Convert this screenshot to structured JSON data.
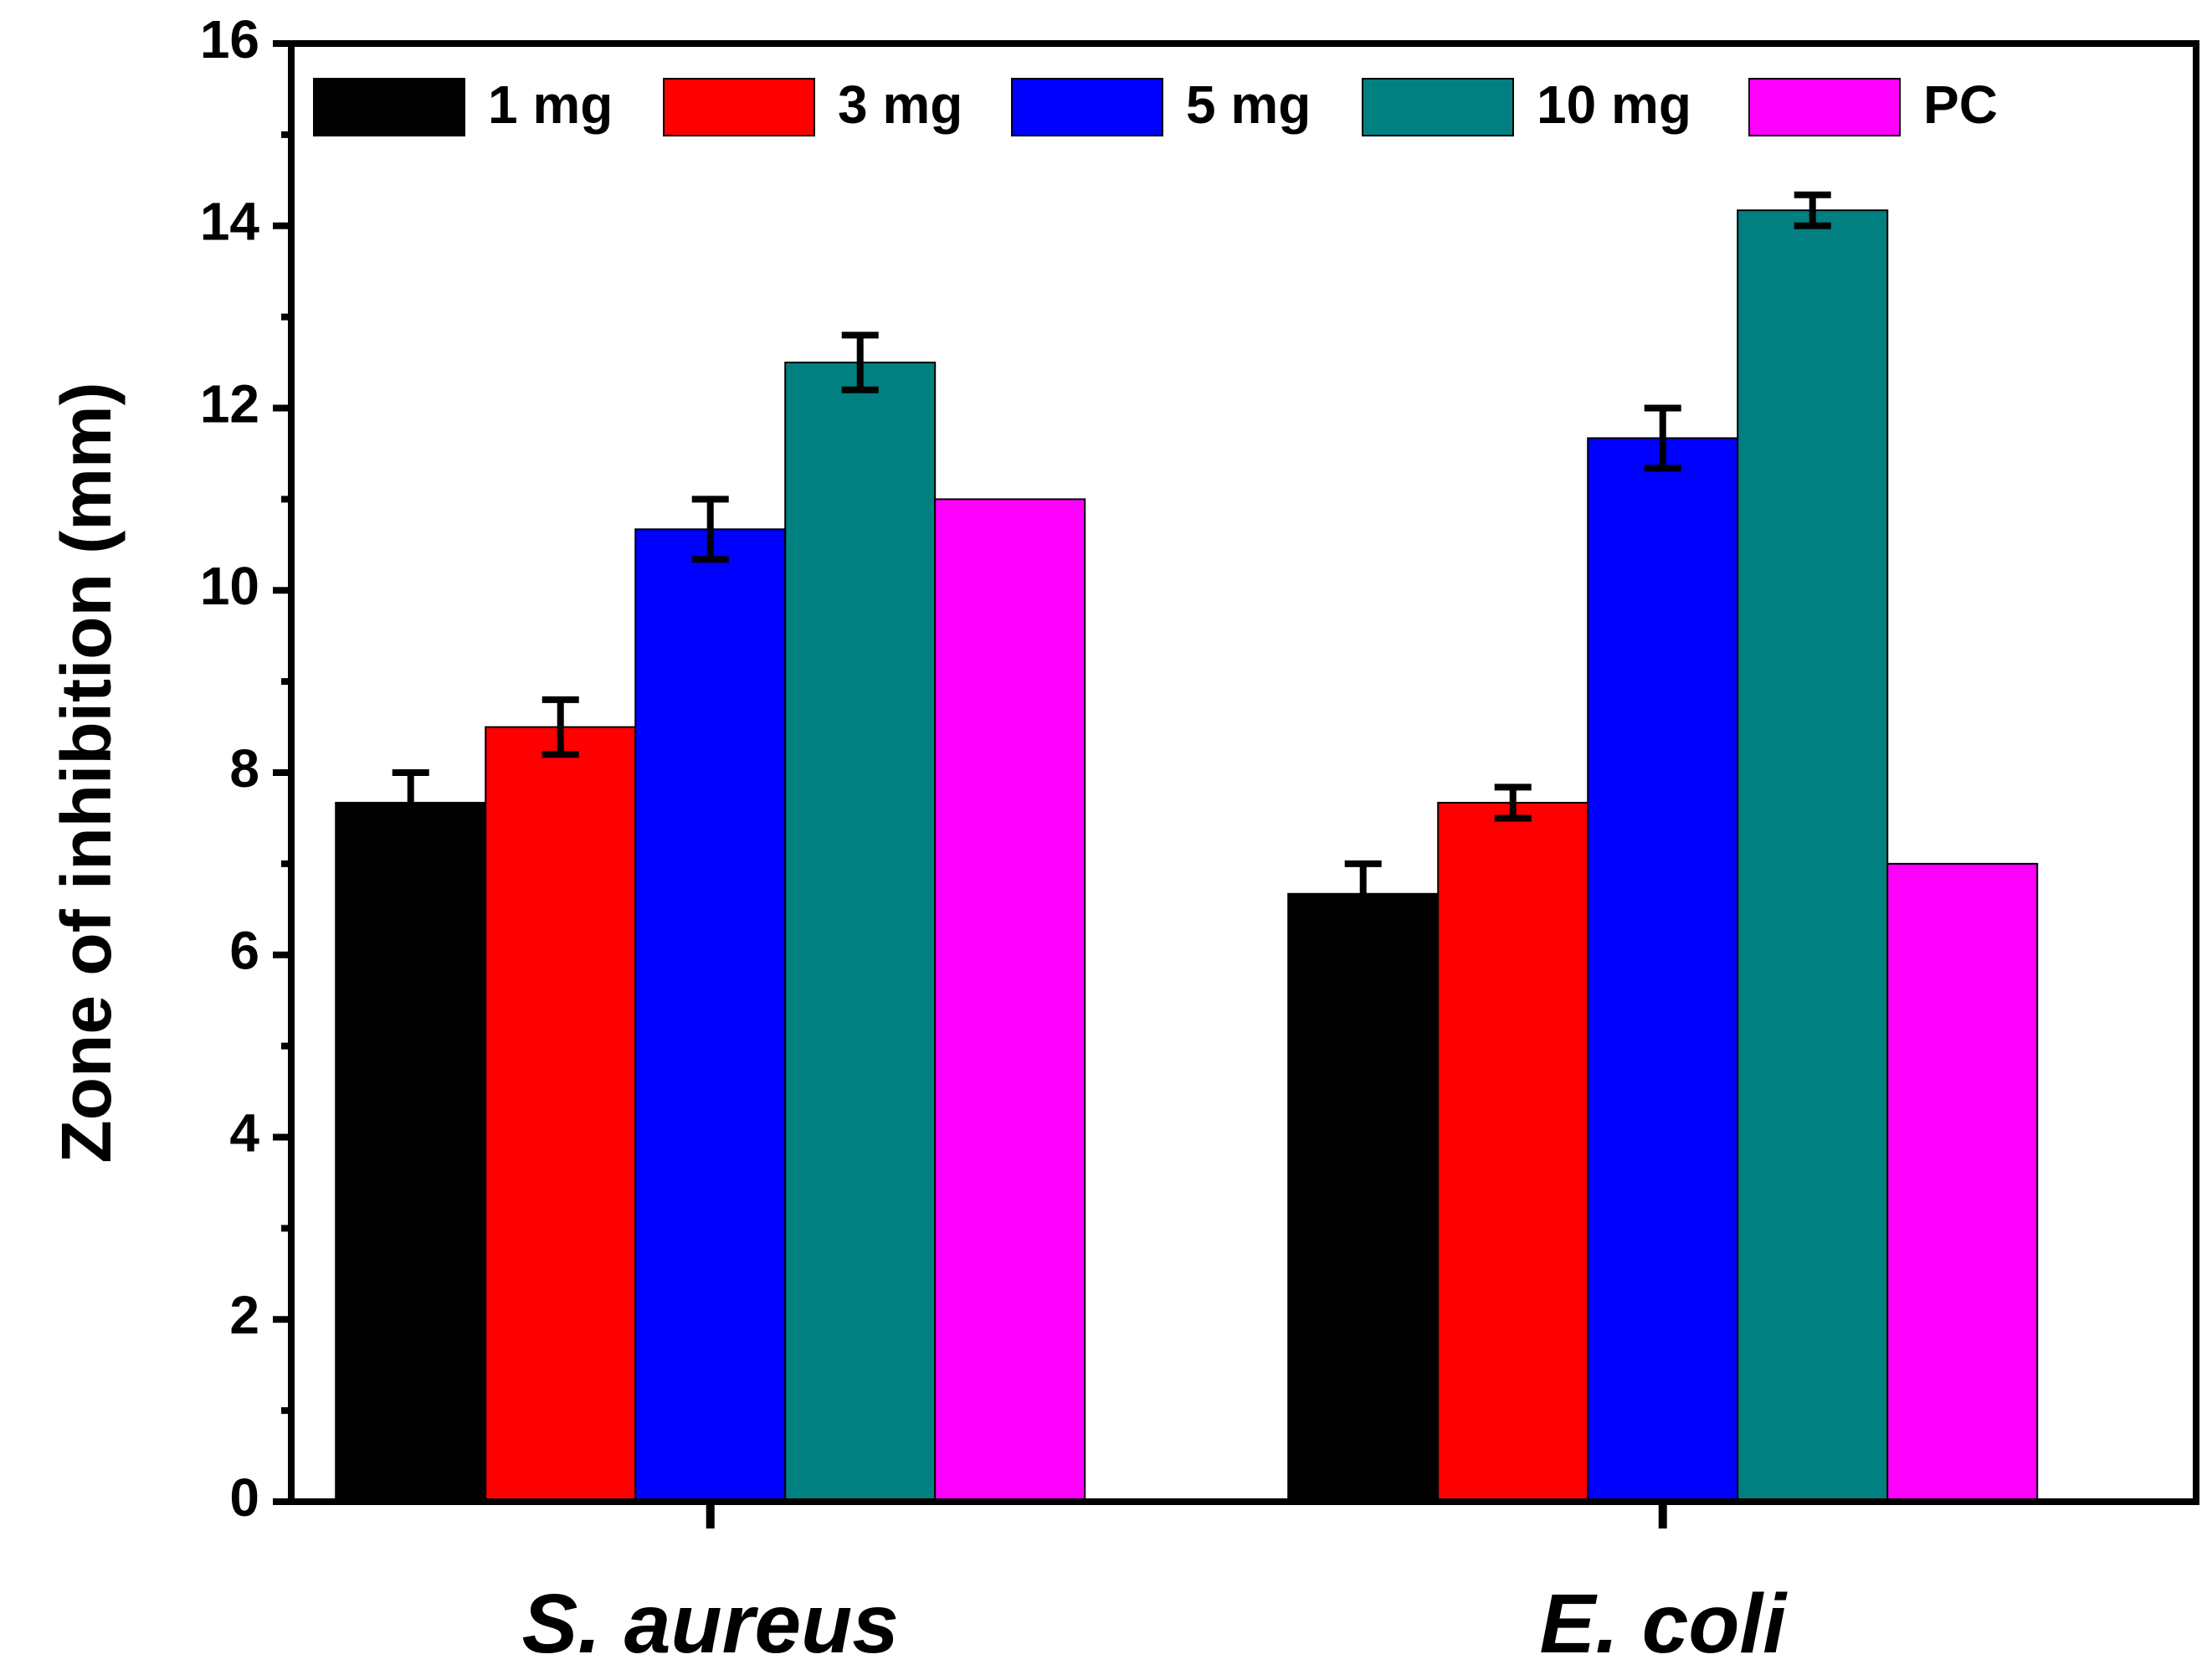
{
  "chart_data": {
    "type": "bar",
    "title": "",
    "xlabel": "",
    "ylabel": "Zone of inhibition (mm)",
    "ylim": [
      0,
      16
    ],
    "yticks": [
      "0",
      "2",
      "4",
      "6",
      "8",
      "10",
      "12",
      "14",
      "16"
    ],
    "categories": [
      "S. aureus",
      "E. coli"
    ],
    "series": [
      {
        "name": "1 mg",
        "color": "#000000",
        "values": [
          7.67,
          6.67
        ],
        "errors": [
          0.33,
          0.33
        ]
      },
      {
        "name": "3 mg",
        "color": "#ff0000",
        "values": [
          8.5,
          7.67
        ],
        "errors": [
          0.3,
          0.17
        ]
      },
      {
        "name": "5 mg",
        "color": "#0000ff",
        "values": [
          10.67,
          11.67
        ],
        "errors": [
          0.33,
          0.33
        ]
      },
      {
        "name": "10 mg",
        "color": "#008080",
        "values": [
          12.5,
          14.17
        ],
        "errors": [
          0.3,
          0.17
        ]
      },
      {
        "name": "PC",
        "color": "#ff00ff",
        "values": [
          11.0,
          7.0
        ],
        "errors": [
          0,
          0
        ]
      }
    ],
    "legend_position": "top",
    "grid": false
  }
}
